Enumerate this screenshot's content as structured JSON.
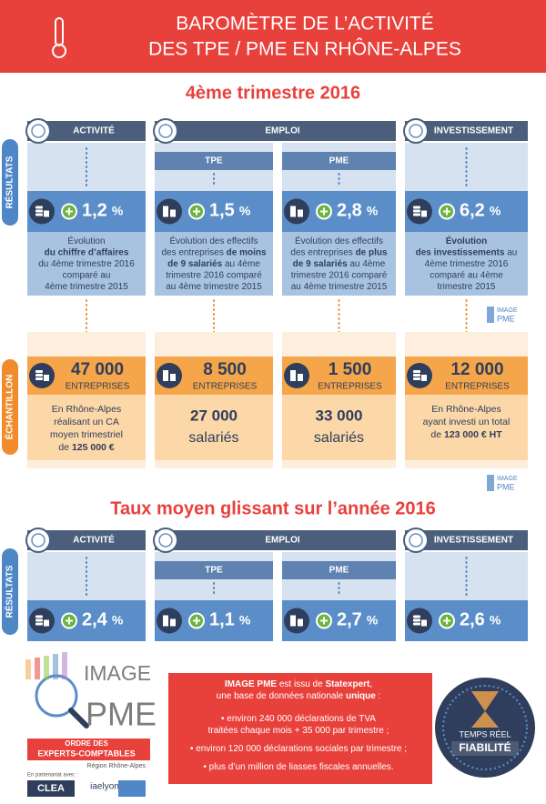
{
  "header": {
    "title_lines": [
      "BAROMÈTRE DE L’ACTIVITÉ",
      "DES TPE / PME EN RHÔNE-ALPES"
    ]
  },
  "quarter": {
    "title": "4ème trimestre 2016",
    "columns": [
      "ACTIVITÉ",
      "EMPLOI",
      "INVESTISSEMENT"
    ],
    "subcolumns": [
      "TPE",
      "PME"
    ],
    "results_label": "RÉSULTATS",
    "sample_label": "ÉCHANTILLON",
    "results": [
      {
        "value": "1,2",
        "unit": "%",
        "description": [
          [
            "Évolution"
          ],
          [
            {
              "text": "du chiffre d’affaires",
              "bold": true
            }
          ],
          [
            "du 4ème trimestre 2016"
          ],
          [
            "comparé au"
          ],
          [
            "4ème trimestre 2015"
          ]
        ]
      },
      {
        "value": "1,5",
        "unit": "%",
        "description": [
          [
            "Évolution des effectifs"
          ],
          [
            "des entreprises ",
            {
              "text": "de moins",
              "bold": true
            }
          ],
          [
            {
              "text": "de 9 salariés",
              "bold": true
            },
            " au 4ème"
          ],
          [
            "trimestre 2016 comparé"
          ],
          [
            "au 4ème trimestre 2015"
          ]
        ]
      },
      {
        "value": "2,8",
        "unit": "%",
        "description": [
          [
            "Évolution des effectifs"
          ],
          [
            "des entreprises ",
            {
              "text": "de plus",
              "bold": true
            }
          ],
          [
            {
              "text": "de 9 salariés",
              "bold": true
            },
            " au 4ème"
          ],
          [
            "trimestre 2016 comparé"
          ],
          [
            "au 4ème trimestre 2015"
          ]
        ]
      },
      {
        "value": "6,2",
        "unit": "%",
        "description": [
          [
            {
              "text": "Évolution",
              "bold": true
            }
          ],
          [
            {
              "text": "des investissements",
              "bold": true
            },
            " au"
          ],
          [
            "4ème trimestre 2016"
          ],
          [
            "comparé au 4ème"
          ],
          [
            "trimestre 2015"
          ]
        ]
      }
    ],
    "samples": [
      {
        "value": "47 000",
        "unit": "ENTREPRISES",
        "description": [
          [
            "En Rhône-Alpes"
          ],
          [
            "réalisant un CA"
          ],
          [
            "moyen trimestriel"
          ],
          [
            "de ",
            {
              "text": "125 000 €",
              "bold": true
            }
          ]
        ]
      },
      {
        "value": "8 500",
        "unit": "ENTREPRISES",
        "detail": {
          "number": "27 000",
          "label": "salariés"
        }
      },
      {
        "value": "1 500",
        "unit": "ENTREPRISES",
        "detail": {
          "number": "33 000",
          "label": "salariés"
        }
      },
      {
        "value": "12 000",
        "unit": "ENTREPRISES",
        "description": [
          [
            "En Rhône-Alpes"
          ],
          [
            "ayant investi un total"
          ],
          [
            "de ",
            {
              "text": "123 000 € HT",
              "bold": true
            }
          ]
        ]
      }
    ]
  },
  "year": {
    "title": "Taux moyen glissant sur l’année 2016",
    "columns": [
      "ACTIVITÉ",
      "EMPLOI",
      "INVESTISSEMENT"
    ],
    "subcolumns": [
      "TPE",
      "PME"
    ],
    "results_label": "RÉSULTATS",
    "results": [
      {
        "value": "2,4",
        "unit": "%"
      },
      {
        "value": "1,1",
        "unit": "%"
      },
      {
        "value": "2,7",
        "unit": "%"
      },
      {
        "value": "2,6",
        "unit": "%"
      }
    ]
  },
  "watermark": [
    "IMAGE",
    "PME"
  ],
  "footer": {
    "logo": [
      "IMAGE",
      "PME"
    ],
    "ordre": [
      "ORDRE DES",
      "EXPERTS-COMPTABLES"
    ],
    "region": "Région Rhône-Alpes",
    "partners_label": "En partenariat avec :",
    "partners": [
      "CLEA",
      "iaelyon"
    ],
    "info": [
      [
        {
          "text": "IMAGE PME",
          "bold": true
        },
        " est issu de ",
        {
          "text": "Statexpert",
          "bold": true
        },
        ","
      ],
      [
        "une base de données nationale ",
        {
          "text": "unique",
          "bold": true
        },
        " :"
      ],
      [
        "• environ 240 000 déclarations de TVA"
      ],
      [
        "traitées chaque mois + 35 000 par trimestre ;"
      ],
      [
        "• environ 120 000 déclarations sociales par trimestre ;"
      ],
      [
        "• plus d’un million de liasses fiscales annuelles."
      ]
    ],
    "badge": [
      "TEMPS RÉEL",
      "FIABILITÉ"
    ]
  }
}
